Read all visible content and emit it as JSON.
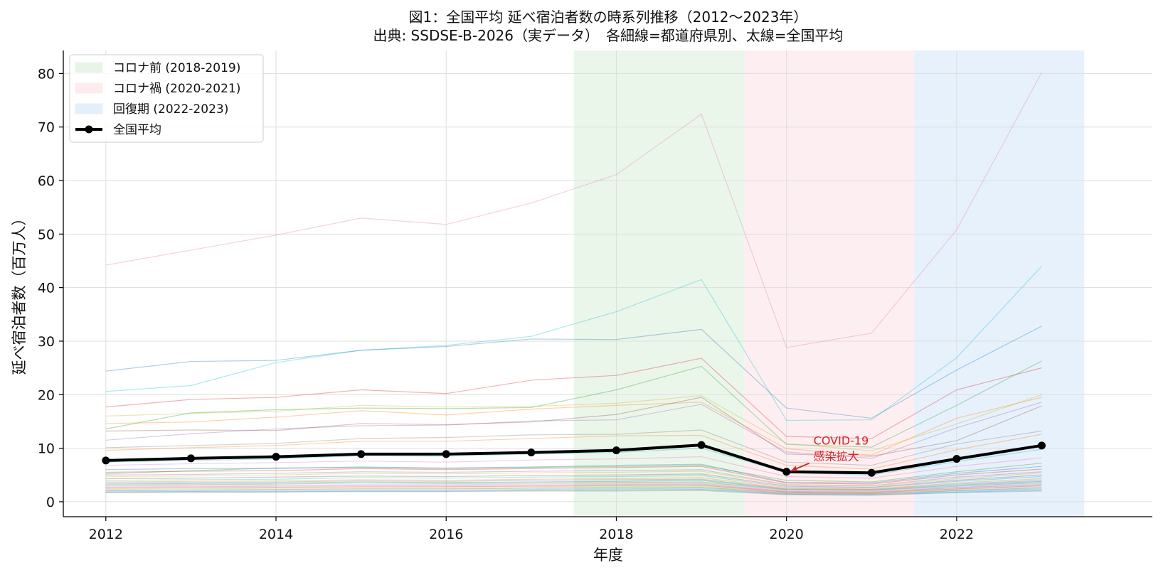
{
  "chart_data": {
    "type": "line",
    "title": "図1：全国平均 延べ宿泊者数の時系列推移（2012〜2023年）",
    "subtitle": "出典: SSDSE-B-2026（実データ）　各細線=都道府県別、太線=全国平均",
    "xlabel": "年度",
    "ylabel": "延べ宿泊者数（百万人）",
    "xlim": [
      2011.5,
      2024.3
    ],
    "ylim": [
      -2.8,
      84.3
    ],
    "xticks": [
      2012,
      2014,
      2016,
      2018,
      2020,
      2022
    ],
    "yticks": [
      0,
      10,
      20,
      30,
      40,
      50,
      60,
      70,
      80
    ],
    "grid": true,
    "legend_position": "top-left",
    "x": [
      2012,
      2013,
      2014,
      2015,
      2016,
      2017,
      2018,
      2019,
      2020,
      2021,
      2022,
      2023
    ],
    "periods": [
      {
        "label": "コロナ前 (2018-2019)",
        "x_start": 2017.5,
        "x_end": 2019.5,
        "color": "#e8f4e8"
      },
      {
        "label": "コロナ禍 (2020-2021)",
        "x_start": 2019.5,
        "x_end": 2021.5,
        "color": "#fdecee"
      },
      {
        "label": "回復期 (2022-2023)",
        "x_start": 2021.5,
        "x_end": 2023.5,
        "color": "#e3effb"
      }
    ],
    "national_average": {
      "name": "全国平均",
      "color": "#000000",
      "values": [
        7.7,
        8.1,
        8.4,
        8.9,
        8.9,
        9.2,
        9.6,
        10.6,
        5.6,
        5.4,
        8.0,
        10.5
      ]
    },
    "prefecture_series": [
      {
        "color": "#e377c2",
        "values": [
          44.2,
          47.0,
          49.8,
          53.0,
          51.8,
          55.8,
          61.1,
          72.4,
          28.8,
          31.5,
          50.8,
          80.2
        ]
      },
      {
        "color": "#17becf",
        "values": [
          20.6,
          21.7,
          26.0,
          28.3,
          29.2,
          30.9,
          35.5,
          41.5,
          15.2,
          15.3,
          26.9,
          44.0
        ]
      },
      {
        "color": "#1f77b4",
        "values": [
          24.4,
          26.2,
          26.4,
          28.3,
          29.0,
          30.4,
          30.3,
          32.2,
          17.5,
          15.6,
          24.6,
          32.8
        ]
      },
      {
        "color": "#d62728",
        "values": [
          17.7,
          19.1,
          19.5,
          20.9,
          20.2,
          22.7,
          23.6,
          26.8,
          12.2,
          11.8,
          20.9,
          25.0
        ]
      },
      {
        "color": "#2ca02c",
        "values": [
          13.6,
          16.6,
          17.2,
          17.5,
          17.4,
          17.6,
          20.9,
          25.3,
          10.7,
          10.2,
          18.0,
          26.3
        ]
      },
      {
        "color": "#bcbd22",
        "values": [
          16.0,
          16.5,
          16.9,
          18.0,
          17.7,
          17.8,
          18.4,
          19.8,
          10.9,
          9.5,
          14.5,
          20.0
        ]
      },
      {
        "color": "#ff7f0e",
        "values": [
          14.6,
          14.9,
          15.8,
          17.0,
          16.2,
          17.3,
          18.0,
          18.6,
          9.9,
          8.7,
          15.6,
          19.5
        ]
      },
      {
        "color": "#9467bd",
        "values": [
          11.5,
          12.7,
          13.6,
          14.2,
          14.3,
          15.1,
          15.3,
          18.2,
          9.3,
          8.1,
          13.8,
          18.6
        ]
      },
      {
        "color": "#8c564b",
        "values": [
          13.2,
          13.4,
          13.3,
          14.6,
          14.4,
          14.9,
          16.3,
          19.5,
          8.9,
          8.5,
          11.4,
          17.9
        ]
      },
      {
        "color": "#7f7f7f",
        "values": [
          10.1,
          10.5,
          10.9,
          11.8,
          12.0,
          12.5,
          12.6,
          13.4,
          7.4,
          6.8,
          10.8,
          13.2
        ]
      },
      {
        "color": "#ff7f0e",
        "values": [
          9.6,
          10.1,
          10.5,
          11.3,
          11.3,
          11.8,
          12.3,
          12.4,
          6.8,
          6.1,
          9.7,
          12.6
        ]
      },
      {
        "color": "#17becf",
        "values": [
          7.4,
          7.7,
          8.0,
          8.6,
          8.5,
          8.9,
          9.2,
          10.0,
          5.4,
          5.0,
          7.5,
          9.8
        ]
      },
      {
        "color": "#e377c2",
        "values": [
          6.8,
          7.1,
          7.3,
          7.6,
          7.4,
          7.8,
          8.0,
          8.4,
          4.7,
          4.4,
          6.6,
          8.2
        ]
      },
      {
        "color": "#2ca02c",
        "values": [
          5.2,
          5.8,
          6.3,
          6.4,
          6.2,
          6.4,
          6.6,
          6.8,
          4.0,
          3.7,
          5.6,
          7.2
        ]
      },
      {
        "color": "#1f77b4",
        "values": [
          6.0,
          6.2,
          6.2,
          6.5,
          6.3,
          6.5,
          6.8,
          7.0,
          3.6,
          3.5,
          5.3,
          6.6
        ]
      },
      {
        "color": "#d62728",
        "values": [
          5.5,
          5.7,
          5.8,
          6.2,
          6.0,
          6.2,
          6.4,
          6.6,
          3.5,
          3.3,
          5.0,
          6.1
        ]
      },
      {
        "color": "#9467bd",
        "values": [
          5.0,
          5.1,
          5.3,
          5.6,
          5.5,
          5.7,
          5.8,
          6.0,
          3.2,
          3.0,
          4.6,
          5.6
        ]
      },
      {
        "color": "#bcbd22",
        "values": [
          4.7,
          4.8,
          5.0,
          5.3,
          5.2,
          5.4,
          5.5,
          5.7,
          3.1,
          2.9,
          4.3,
          5.4
        ]
      },
      {
        "color": "#8c564b",
        "values": [
          4.3,
          4.4,
          4.6,
          4.8,
          4.7,
          4.9,
          5.0,
          5.2,
          2.9,
          2.7,
          4.0,
          5.0
        ]
      },
      {
        "color": "#17becf",
        "values": [
          4.0,
          4.1,
          4.2,
          4.5,
          4.4,
          4.6,
          4.7,
          4.9,
          2.7,
          2.6,
          3.8,
          4.7
        ]
      },
      {
        "color": "#ff7f0e",
        "values": [
          3.7,
          3.8,
          3.9,
          4.1,
          4.0,
          4.2,
          4.3,
          4.5,
          2.5,
          2.4,
          3.5,
          4.3
        ]
      },
      {
        "color": "#7f7f7f",
        "values": [
          3.5,
          3.6,
          3.7,
          3.9,
          3.8,
          4.0,
          4.1,
          4.2,
          2.4,
          2.3,
          3.3,
          4.0
        ]
      },
      {
        "color": "#1f77b4",
        "values": [
          3.3,
          3.4,
          3.5,
          3.7,
          3.6,
          3.7,
          3.8,
          4.0,
          2.3,
          2.2,
          3.1,
          3.8
        ]
      },
      {
        "color": "#2ca02c",
        "values": [
          3.1,
          3.2,
          3.3,
          3.5,
          3.4,
          3.5,
          3.6,
          3.7,
          2.2,
          2.1,
          2.9,
          3.6
        ]
      },
      {
        "color": "#e377c2",
        "values": [
          2.9,
          3.0,
          3.1,
          3.2,
          3.2,
          3.3,
          3.4,
          3.5,
          2.0,
          1.9,
          2.7,
          3.4
        ]
      },
      {
        "color": "#9467bd",
        "values": [
          2.7,
          2.8,
          2.9,
          3.0,
          3.0,
          3.1,
          3.2,
          3.3,
          1.9,
          1.8,
          2.6,
          3.2
        ]
      },
      {
        "color": "#d62728",
        "values": [
          2.5,
          2.6,
          2.7,
          2.8,
          2.8,
          2.9,
          3.0,
          3.1,
          1.8,
          1.7,
          2.4,
          3.0
        ]
      },
      {
        "color": "#bcbd22",
        "values": [
          2.3,
          2.4,
          2.5,
          2.6,
          2.6,
          2.7,
          2.8,
          2.9,
          1.7,
          1.6,
          2.3,
          2.8
        ]
      },
      {
        "color": "#8c564b",
        "values": [
          2.1,
          2.2,
          2.3,
          2.4,
          2.4,
          2.5,
          2.6,
          2.7,
          1.6,
          1.5,
          2.1,
          2.6
        ]
      },
      {
        "color": "#17becf",
        "values": [
          2.0,
          2.0,
          2.1,
          2.2,
          2.2,
          2.3,
          2.4,
          2.5,
          1.5,
          1.4,
          2.0,
          2.4
        ]
      },
      {
        "color": "#1f77b4",
        "values": [
          1.8,
          1.9,
          1.9,
          2.0,
          2.0,
          2.1,
          2.2,
          2.3,
          1.4,
          1.3,
          1.8,
          2.2
        ]
      },
      {
        "color": "#7f7f7f",
        "values": [
          1.7,
          1.7,
          1.8,
          1.9,
          1.9,
          2.0,
          2.0,
          2.1,
          1.3,
          1.2,
          1.7,
          2.0
        ]
      }
    ],
    "annotation": {
      "text_line1": "COVID-19",
      "text_line2": "感染拡大",
      "point_x": 2020,
      "point_y": 5.6,
      "color": "#d62728"
    }
  }
}
